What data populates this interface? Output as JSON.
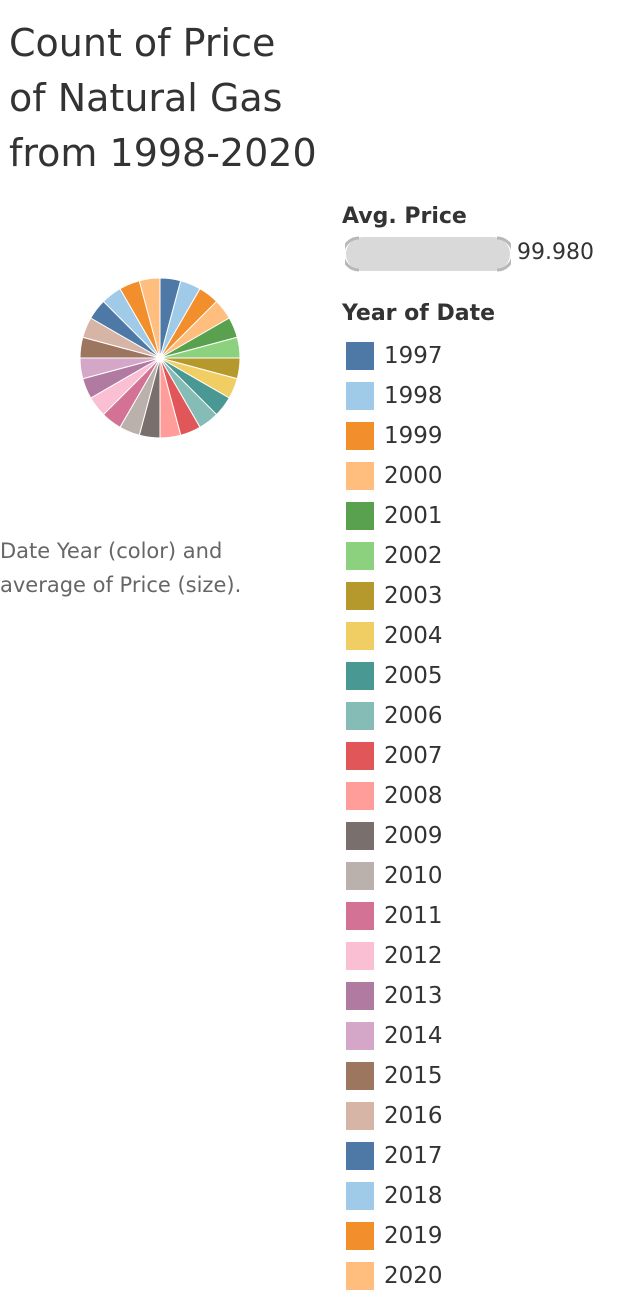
{
  "title_lines": [
    "Count of Price",
    "of Natural Gas",
    "from 1998-2020"
  ],
  "caption_lines": [
    "Date Year (color) and",
    "average of Price (size)."
  ],
  "size_legend": {
    "title": "Avg. Price",
    "value": "99.980"
  },
  "color_legend": {
    "title": "Year of Date"
  },
  "chart_data": {
    "type": "pie",
    "title": "Count of Price of Natural Gas from 1998-2020",
    "categories": [
      "1997",
      "1998",
      "1999",
      "2000",
      "2001",
      "2002",
      "2003",
      "2004",
      "2005",
      "2006",
      "2007",
      "2008",
      "2009",
      "2010",
      "2011",
      "2012",
      "2013",
      "2014",
      "2015",
      "2016",
      "2017",
      "2018",
      "2019",
      "2020"
    ],
    "values": [
      12,
      12,
      12,
      12,
      12,
      12,
      12,
      12,
      12,
      12,
      12,
      12,
      12,
      12,
      12,
      12,
      12,
      12,
      12,
      12,
      12,
      12,
      12,
      12
    ],
    "colors": [
      "#4e79a7",
      "#a0cbe8",
      "#f28e2b",
      "#ffbe7d",
      "#59a14f",
      "#8cd17d",
      "#b6992d",
      "#f1ce63",
      "#499894",
      "#86bcb6",
      "#e15759",
      "#ff9d9a",
      "#79706e",
      "#bab0ac",
      "#d37295",
      "#fabfd2",
      "#b07aa1",
      "#d4a6c8",
      "#9d7660",
      "#d7b5a6",
      "#4e79a7",
      "#a0cbe8",
      "#f28e2b",
      "#ffbe7d"
    ],
    "legend": "right"
  }
}
